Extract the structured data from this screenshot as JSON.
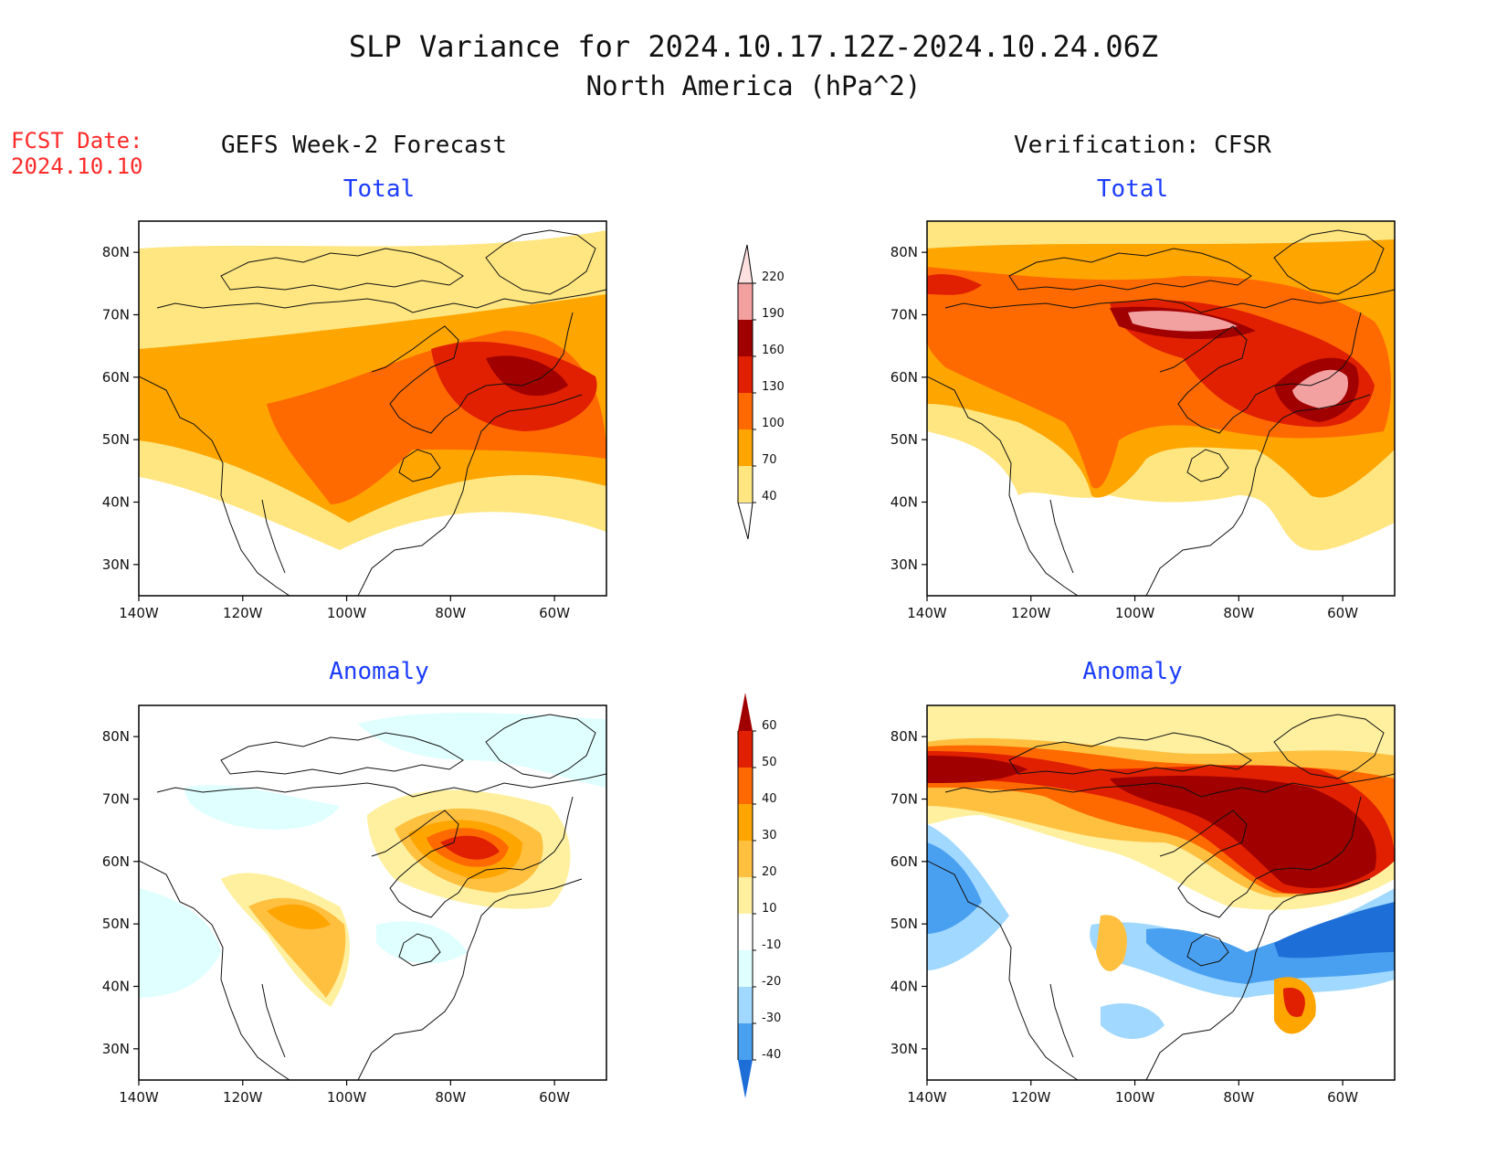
{
  "header": {
    "title": "SLP Variance for 2024.10.17.12Z-2024.10.24.06Z",
    "subtitle": "North America (hPa^2)",
    "fcst_label": "FCST Date:",
    "fcst_date": "2024.10.10"
  },
  "columns": {
    "left": "GEFS Week-2 Forecast",
    "right": "Verification: CFSR"
  },
  "panels": {
    "top_left": "Total",
    "top_right": "Total",
    "bottom_left": "Anomaly",
    "bottom_right": "Anomaly"
  },
  "axes": {
    "lat_ticks": [
      "80N",
      "70N",
      "60N",
      "50N",
      "40N",
      "30N"
    ],
    "lon_ticks": [
      "140W",
      "120W",
      "100W",
      "80W",
      "60W"
    ],
    "lat_range": [
      25,
      85
    ],
    "lon_range": [
      -140,
      -50
    ]
  },
  "colorbars": {
    "total": {
      "labels": [
        "40",
        "70",
        "100",
        "130",
        "160",
        "190",
        "220"
      ],
      "colors": [
        "#ffe680",
        "#ffa500",
        "#ff6a00",
        "#e02000",
        "#a00000",
        "#f2a0a0",
        "#ffe0e0"
      ]
    },
    "anomaly": {
      "labels": [
        "60",
        "50",
        "40",
        "30",
        "20",
        "10",
        "-10",
        "-20",
        "-30",
        "-40"
      ],
      "colors": [
        "#a00000",
        "#e02000",
        "#ff6a00",
        "#ffa500",
        "#ffc040",
        "#fff0a0",
        "#ffffff",
        "#e0ffff",
        "#a0d8ff",
        "#4aa0f0",
        "#1e6ed8"
      ]
    }
  }
}
